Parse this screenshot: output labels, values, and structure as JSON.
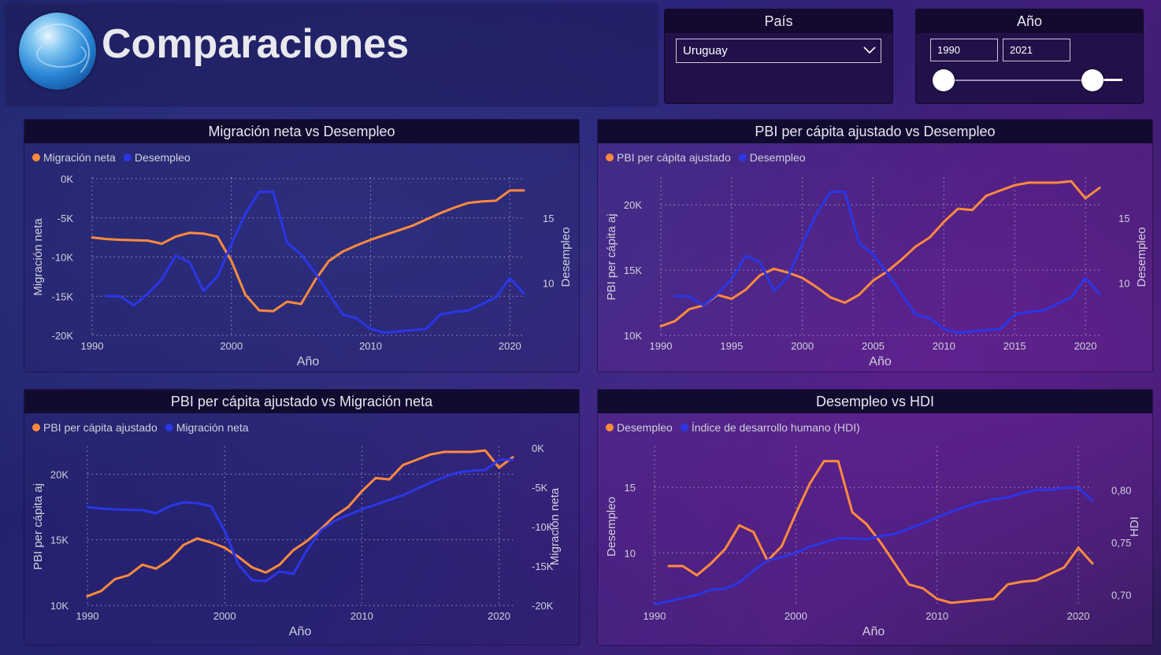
{
  "header": {
    "title": "Comparaciones"
  },
  "filters": {
    "pais": {
      "label": "País",
      "selected": "Uruguay"
    },
    "anio": {
      "label": "Año",
      "from": "1990",
      "to": "2021"
    }
  },
  "colors": {
    "orange": "#ff8a3d",
    "blue": "#2a36e6"
  },
  "chart_data": [
    {
      "type": "line",
      "title": "Migración neta vs Desempleo",
      "xlabel": "Año",
      "x": [
        1990,
        1991,
        1992,
        1993,
        1994,
        1995,
        1996,
        1997,
        1998,
        1999,
        2000,
        2001,
        2002,
        2003,
        2004,
        2005,
        2006,
        2007,
        2008,
        2009,
        2010,
        2011,
        2012,
        2013,
        2014,
        2015,
        2016,
        2017,
        2018,
        2019,
        2020,
        2021
      ],
      "xlim": [
        1990,
        2021
      ],
      "xticks": [
        1990,
        2000,
        2010,
        2020
      ],
      "series": [
        {
          "name": "Migración neta",
          "axis": "left",
          "ylabel": "Migración neta",
          "ylim": [
            -20000,
            0
          ],
          "yticks": [
            0,
            -5000,
            -10000,
            -15000,
            -20000
          ],
          "yticklabels": [
            "0K",
            "-5K",
            "-10K",
            "-15K",
            "-20K"
          ],
          "values": [
            -7500,
            -7700,
            -7800,
            -7850,
            -7900,
            -8300,
            -7400,
            -6900,
            -7000,
            -7400,
            -10500,
            -14800,
            -16800,
            -16900,
            -15700,
            -16000,
            -13000,
            -10500,
            -9300,
            -8500,
            -7800,
            -7200,
            -6600,
            -6000,
            -5200,
            -4400,
            -3700,
            -3100,
            -2900,
            -2800,
            -1500,
            -1500
          ]
        },
        {
          "name": "Desempleo",
          "axis": "right",
          "ylabel": "Desempleo",
          "ylim": [
            6,
            18
          ],
          "yticks": [
            15,
            10
          ],
          "yticklabels": [
            "15",
            "10"
          ],
          "values": [
            null,
            9.0,
            9.0,
            8.3,
            9.2,
            10.3,
            12.1,
            11.6,
            9.4,
            10.5,
            13.0,
            15.3,
            17.0,
            17.0,
            13.1,
            12.2,
            10.8,
            9.2,
            7.6,
            7.3,
            6.5,
            6.2,
            6.3,
            6.4,
            6.5,
            7.6,
            7.8,
            7.9,
            8.4,
            8.9,
            10.4,
            9.2
          ]
        }
      ]
    },
    {
      "type": "line",
      "title": "PBI per cápita ajustado vs Desempleo",
      "xlabel": "Año",
      "x": [
        1990,
        1991,
        1992,
        1993,
        1994,
        1995,
        1996,
        1997,
        1998,
        1999,
        2000,
        2001,
        2002,
        2003,
        2004,
        2005,
        2006,
        2007,
        2008,
        2009,
        2010,
        2011,
        2012,
        2013,
        2014,
        2015,
        2016,
        2017,
        2018,
        2019,
        2020,
        2021
      ],
      "xlim": [
        1990,
        2021
      ],
      "xticks": [
        1990,
        1995,
        2000,
        2005,
        2010,
        2015,
        2020
      ],
      "series": [
        {
          "name": "PBI per cápita ajustado",
          "axis": "left",
          "ylabel": "PBI per cápita aj",
          "ylim": [
            10000,
            22000
          ],
          "yticks": [
            20000,
            15000,
            10000
          ],
          "yticklabels": [
            "20K",
            "15K",
            "10K"
          ],
          "values": [
            10700,
            11100,
            12000,
            12300,
            13100,
            12800,
            13500,
            14600,
            15100,
            14800,
            14400,
            13700,
            12900,
            12500,
            13100,
            14200,
            14900,
            15800,
            16800,
            17500,
            18700,
            19700,
            19600,
            20700,
            21100,
            21500,
            21700,
            21700,
            21700,
            21800,
            20500,
            21300
          ]
        },
        {
          "name": "Desempleo",
          "axis": "right",
          "ylabel": "Desempleo",
          "ylim": [
            6,
            18
          ],
          "yticks": [
            15,
            10
          ],
          "yticklabels": [
            "15",
            "10"
          ],
          "values": [
            null,
            9.0,
            9.0,
            8.3,
            9.2,
            10.3,
            12.1,
            11.6,
            9.4,
            10.5,
            13.0,
            15.3,
            17.0,
            17.0,
            13.1,
            12.2,
            10.8,
            9.2,
            7.6,
            7.3,
            6.5,
            6.2,
            6.3,
            6.4,
            6.5,
            7.6,
            7.8,
            7.9,
            8.4,
            8.9,
            10.4,
            9.2
          ]
        }
      ]
    },
    {
      "type": "line",
      "title": "PBI per cápita ajustado vs Migración neta",
      "xlabel": "Año",
      "x": [
        1990,
        1991,
        1992,
        1993,
        1994,
        1995,
        1996,
        1997,
        1998,
        1999,
        2000,
        2001,
        2002,
        2003,
        2004,
        2005,
        2006,
        2007,
        2008,
        2009,
        2010,
        2011,
        2012,
        2013,
        2014,
        2015,
        2016,
        2017,
        2018,
        2019,
        2020,
        2021
      ],
      "xlim": [
        1990,
        2021
      ],
      "xticks": [
        1990,
        2000,
        2010,
        2020
      ],
      "series": [
        {
          "name": "PBI per cápita ajustado",
          "axis": "left",
          "ylabel": "PBI per cápita aj",
          "ylim": [
            10000,
            22000
          ],
          "yticks": [
            20000,
            15000,
            10000
          ],
          "yticklabels": [
            "20K",
            "15K",
            "10K"
          ],
          "values": [
            10700,
            11100,
            12000,
            12300,
            13100,
            12800,
            13500,
            14600,
            15100,
            14800,
            14400,
            13700,
            12900,
            12500,
            13100,
            14200,
            14900,
            15800,
            16800,
            17500,
            18700,
            19700,
            19600,
            20700,
            21100,
            21500,
            21700,
            21700,
            21700,
            21800,
            20500,
            21300
          ]
        },
        {
          "name": "Migración neta",
          "axis": "right",
          "ylabel": "Migración neta",
          "ylim": [
            -20000,
            0
          ],
          "yticks": [
            0,
            -5000,
            -10000,
            -15000,
            -20000
          ],
          "yticklabels": [
            "0K",
            "-5K",
            "-10K",
            "-15K",
            "-20K"
          ],
          "values": [
            -7500,
            -7700,
            -7800,
            -7850,
            -7900,
            -8300,
            -7400,
            -6900,
            -7000,
            -7400,
            -10500,
            -14800,
            -16800,
            -16900,
            -15700,
            -16000,
            -13000,
            -10500,
            -9300,
            -8500,
            -7800,
            -7200,
            -6600,
            -6000,
            -5200,
            -4400,
            -3700,
            -3100,
            -2900,
            -2800,
            -1500,
            -1500
          ]
        }
      ]
    },
    {
      "type": "line",
      "title": "Desempleo vs HDI",
      "xlabel": "Año",
      "x": [
        1990,
        1991,
        1992,
        1993,
        1994,
        1995,
        1996,
        1997,
        1998,
        1999,
        2000,
        2001,
        2002,
        2003,
        2004,
        2005,
        2006,
        2007,
        2008,
        2009,
        2010,
        2011,
        2012,
        2013,
        2014,
        2015,
        2016,
        2017,
        2018,
        2019,
        2020,
        2021
      ],
      "xlim": [
        1990,
        2021
      ],
      "xticks": [
        1990,
        2000,
        2010,
        2020
      ],
      "series": [
        {
          "name": "Desempleo",
          "axis": "left",
          "ylabel": "Desempleo",
          "ylim": [
            6,
            18
          ],
          "yticks": [
            15,
            10
          ],
          "yticklabels": [
            "15",
            "10"
          ],
          "values": [
            null,
            9.0,
            9.0,
            8.3,
            9.2,
            10.3,
            12.1,
            11.6,
            9.4,
            10.5,
            13.0,
            15.3,
            17.0,
            17.0,
            13.1,
            12.2,
            10.8,
            9.2,
            7.6,
            7.3,
            6.5,
            6.2,
            6.3,
            6.4,
            6.5,
            7.6,
            7.8,
            7.9,
            8.4,
            8.9,
            10.4,
            9.2
          ]
        },
        {
          "name": "Índice de desarrollo humano (HDI)",
          "axis": "right",
          "ylabel": "HDI",
          "ylim": [
            0.69,
            0.84
          ],
          "yticks": [
            0.8,
            0.75,
            0.7
          ],
          "yticklabels": [
            "0,80",
            "0,75",
            "0,70"
          ],
          "values": [
            0.691,
            0.694,
            0.697,
            0.7,
            0.705,
            0.706,
            0.712,
            0.723,
            0.733,
            0.736,
            0.74,
            0.746,
            0.75,
            0.754,
            0.754,
            0.753,
            0.756,
            0.758,
            0.763,
            0.768,
            0.774,
            0.779,
            0.784,
            0.788,
            0.791,
            0.793,
            0.797,
            0.8,
            0.8,
            0.802,
            0.802,
            0.79
          ]
        }
      ]
    }
  ]
}
